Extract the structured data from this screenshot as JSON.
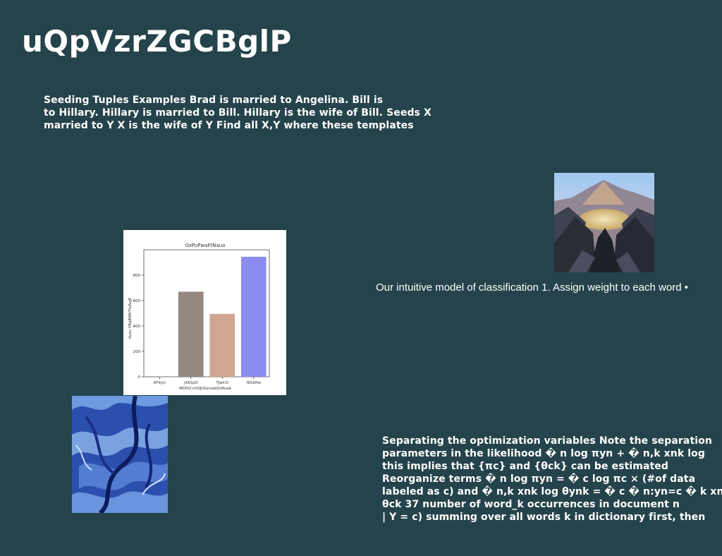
{
  "page": {
    "title": "uQpVzrZGCBglP"
  },
  "paragraph_top": {
    "lines": [
      "Seeding Tuples Examples Brad is married to Angelina. Bill is",
      "to Hillary. Hillary is married to Bill. Hillary is the wife of Bill. Seeds X",
      "married to Y X is the wife of Y Find all X,Y where these templates"
    ]
  },
  "caption": {
    "text": "Our intuitive model of classification 1. Assign weight to each word •"
  },
  "paragraph_bottom": {
    "lines": [
      "Separating the optimization variables Note the separation",
      "parameters in the likelihood � n log πyn + � n,k xnk log",
      "this implies that {πc} and {θck} can be estimated",
      "Reorganize terms � n log πyn = � c log πc × (#of data",
      "labeled as c) and � n,k xnk log θynk = � c � n:yn=c � k xnk",
      "θck 37 number of word_k occurrences in document n",
      "| Y = c) summing over all words k in dictionary first, then"
    ]
  },
  "images": {
    "mountain": "mountain-lake-photo",
    "marble": "blue-marble-texture"
  },
  "chart_data": {
    "type": "bar",
    "title": "OzPuPwaFtNauo",
    "xlabel": "MDtSCvVOJOGmebQnRsaA",
    "ylabel": "dvou YBqBKRiTlsfbgE",
    "categories": [
      "AFIlyU",
      "jXKSsD",
      "TJwCO",
      "fDtdHw"
    ],
    "values": [
      0,
      670,
      495,
      945
    ],
    "colors": [
      "#8c8cf0",
      "#948780",
      "#d0a592",
      "#8c8cee"
    ],
    "yticks": [
      0,
      200,
      400,
      600,
      800
    ],
    "ylim": [
      0,
      1000
    ],
    "grid": false
  }
}
